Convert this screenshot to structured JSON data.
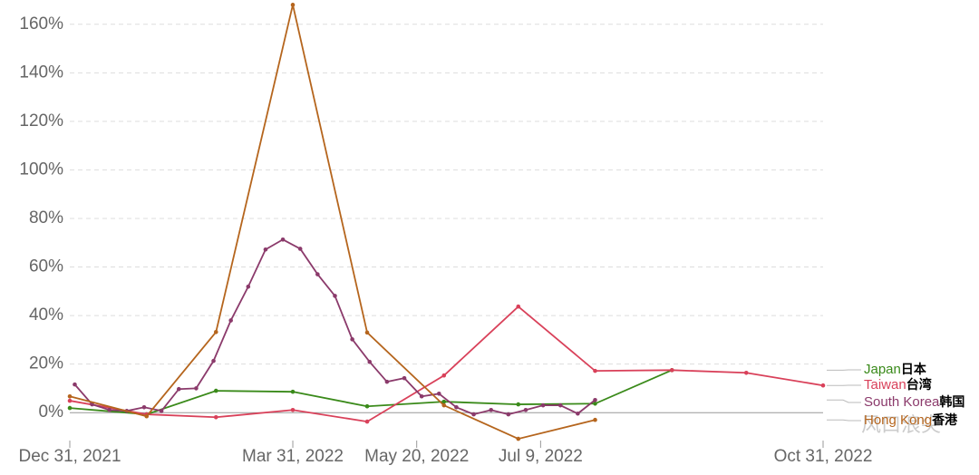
{
  "chart_data": {
    "type": "line",
    "xlim": [
      "2021-12-31",
      "2022-10-31"
    ],
    "xticks": [
      {
        "value": "2021-12-31",
        "label": "Dec 31, 2021"
      },
      {
        "value": "2022-03-31",
        "label": "Mar 31, 2022"
      },
      {
        "value": "2022-05-20",
        "label": "May 20, 2022"
      },
      {
        "value": "2022-07-09",
        "label": "Jul 9, 2022"
      },
      {
        "value": "2022-10-31",
        "label": "Oct 31, 2022"
      }
    ],
    "ylim": [
      -13,
      170
    ],
    "yticks": [
      {
        "value": 0,
        "label": "0%"
      },
      {
        "value": 20,
        "label": "20%"
      },
      {
        "value": 40,
        "label": "40%"
      },
      {
        "value": 60,
        "label": "60%"
      },
      {
        "value": 80,
        "label": "80%"
      },
      {
        "value": 100,
        "label": "100%"
      },
      {
        "value": 120,
        "label": "120%"
      },
      {
        "value": 140,
        "label": "140%"
      },
      {
        "value": 160,
        "label": "160%"
      }
    ],
    "grid": true,
    "watermark": "风口浪尖",
    "series": [
      {
        "name": "Japan",
        "name_cn": "日本",
        "color": "#3a8a1a",
        "x": [
          "2021-12-31",
          "2022-01-31",
          "2022-02-28",
          "2022-03-31",
          "2022-04-30",
          "2022-05-31",
          "2022-06-30",
          "2022-07-31",
          "2022-08-31"
        ],
        "values": [
          1.9,
          -0.7,
          9,
          8.6,
          2.6,
          4.5,
          3.4,
          3.7,
          17.5
        ]
      },
      {
        "name": "Taiwan",
        "name_cn": "台湾",
        "color": "#d9415a",
        "x": [
          "2021-12-31",
          "2022-01-31",
          "2022-02-28",
          "2022-03-31",
          "2022-04-30",
          "2022-05-31",
          "2022-06-30",
          "2022-07-31",
          "2022-08-31",
          "2022-09-30",
          "2022-10-31"
        ],
        "values": [
          4.9,
          -0.7,
          -1.9,
          1.1,
          -3.7,
          15.3,
          43.7,
          17.2,
          17.5,
          16.4,
          11.2
        ]
      },
      {
        "name": "South Korea",
        "name_cn": "韩国",
        "color": "#8b3a6b",
        "x": [
          "2022-01-02",
          "2022-01-09",
          "2022-01-16",
          "2022-01-23",
          "2022-01-30",
          "2022-02-06",
          "2022-02-13",
          "2022-02-20",
          "2022-02-27",
          "2022-03-06",
          "2022-03-13",
          "2022-03-20",
          "2022-03-27",
          "2022-04-03",
          "2022-04-10",
          "2022-04-17",
          "2022-04-24",
          "2022-05-01",
          "2022-05-08",
          "2022-05-15",
          "2022-05-22",
          "2022-05-29",
          "2022-06-05",
          "2022-06-12",
          "2022-06-19",
          "2022-06-26",
          "2022-07-03",
          "2022-07-10",
          "2022-07-17",
          "2022-07-24",
          "2022-07-31"
        ],
        "values": [
          11.6,
          3.4,
          1.1,
          0.7,
          2.2,
          0.7,
          9.7,
          10,
          21.3,
          38,
          51.9,
          67.2,
          71.3,
          67.5,
          57,
          48.1,
          30.2,
          20.9,
          12.7,
          14.2,
          6.7,
          7.8,
          2.2,
          -0.7,
          1.1,
          -0.7,
          1.1,
          3,
          3,
          -0.4,
          5.2
        ]
      },
      {
        "name": "Hong Kong",
        "name_cn": "香港",
        "color": "#b5651d",
        "x": [
          "2021-12-31",
          "2022-01-31",
          "2022-02-28",
          "2022-03-31",
          "2022-04-30",
          "2022-05-31",
          "2022-06-30",
          "2022-07-31"
        ],
        "values": [
          6.7,
          -1.5,
          33.2,
          168,
          33,
          3,
          -10.8,
          -3
        ]
      }
    ]
  }
}
